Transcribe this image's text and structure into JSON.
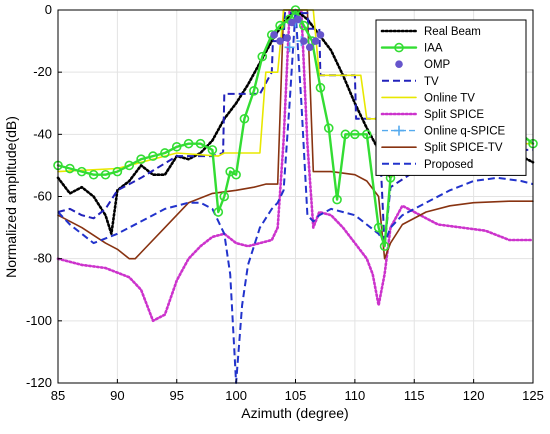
{
  "chart_data": {
    "type": "line",
    "xlabel": "Azimuth (degree)",
    "ylabel": "Normalized amplitude(dB)",
    "xlim": [
      85,
      125
    ],
    "ylim": [
      -120,
      0
    ],
    "xticks": [
      "85",
      "90",
      "95",
      "100",
      "105",
      "110",
      "115",
      "120",
      "125"
    ],
    "yticks": [
      "0",
      "-20",
      "-40",
      "-60",
      "-80",
      "-100",
      "-120"
    ],
    "grid": true,
    "legend_position": "top-right",
    "series": [
      {
        "name": "Real Beam",
        "color": "#000000",
        "style": "dotted",
        "x": [
          85,
          86,
          87,
          88,
          89,
          89.5,
          90,
          91,
          92,
          93,
          94,
          95,
          96,
          97,
          98,
          99,
          100,
          101,
          102,
          103,
          104,
          105,
          106,
          107,
          108,
          109,
          110,
          111,
          112,
          113,
          114,
          115,
          116,
          117,
          118,
          119,
          120,
          121,
          122,
          123,
          124,
          125
        ],
        "y": [
          -54,
          -59,
          -57,
          -60,
          -66,
          -72,
          -58,
          -55,
          -50,
          -53,
          -53,
          -47,
          -48,
          -46,
          -42,
          -35,
          -30,
          -24,
          -17,
          -10,
          -4,
          0,
          -3,
          -8,
          -13,
          -21,
          -30,
          -38,
          -45,
          -54,
          -48,
          -45,
          -44,
          -42,
          -42,
          -43,
          -44,
          -44,
          -45,
          -45,
          -47,
          -49
        ]
      },
      {
        "name": "IAA",
        "color": "#33dd33",
        "style": "solid-circle",
        "x": [
          85,
          86,
          87,
          88,
          89,
          90,
          91,
          92,
          93,
          94,
          95,
          96,
          97,
          98,
          98.5,
          99,
          99.5,
          100,
          100.7,
          101.5,
          102.2,
          103,
          103.7,
          104.5,
          105,
          105.7,
          106.4,
          107.1,
          107.8,
          108.5,
          109.2,
          110,
          111,
          112,
          112.5,
          113,
          114,
          115,
          116,
          117,
          118,
          119,
          120,
          121,
          122,
          123,
          124,
          125
        ],
        "y": [
          -50,
          -51,
          -52,
          -53,
          -53,
          -52,
          -50,
          -48,
          -47,
          -46,
          -44,
          -43,
          -43,
          -45,
          -65,
          -60,
          -52,
          -53,
          -35,
          -26,
          -15,
          -8,
          -5,
          -3,
          0,
          -5,
          -10,
          -25,
          -38,
          -61,
          -40,
          -40,
          -40,
          -70,
          -76,
          -54,
          -46,
          -45,
          -44,
          -43,
          -42,
          -41,
          -40,
          -40,
          -41,
          -41,
          -40,
          -43
        ]
      },
      {
        "name": "OMP",
        "color": "#6655cc",
        "style": "marker",
        "x": [
          103.2,
          103.7,
          104.3,
          104.7,
          105.2,
          105.7,
          106.2,
          106.7,
          107.1
        ],
        "y": [
          -8,
          -10,
          -9,
          -4,
          -3,
          -10,
          -12,
          -10,
          -8
        ]
      },
      {
        "name": "TV",
        "color": "#2222bb",
        "style": "dashed",
        "x": [
          85,
          86,
          87,
          88,
          89,
          90,
          91,
          92,
          95,
          98,
          98.9,
          99,
          102,
          103,
          103.1,
          104,
          104.1,
          106,
          106.1,
          107,
          107.1,
          110,
          110.1,
          112,
          112.5,
          113,
          115,
          120,
          125
        ],
        "y": [
          -65,
          -64,
          -66,
          -67,
          -64,
          -58,
          -56,
          -54,
          -47,
          -47,
          -46,
          -27,
          -27,
          -20,
          -10,
          -10,
          -1,
          -1,
          -6,
          -6,
          -21,
          -21,
          -35,
          -35,
          -76,
          -57,
          -52,
          -45,
          -45
        ]
      },
      {
        "name": "Online TV",
        "color": "#e8e800",
        "style": "solid",
        "x": [
          85,
          90,
          95,
          98.5,
          99,
          102,
          102.5,
          103.5,
          104,
          106.5,
          107,
          110.5,
          111,
          112.5,
          113,
          115,
          120,
          125
        ],
        "y": [
          -52,
          -51,
          -46,
          -47,
          -46,
          -46,
          -20,
          -20,
          0,
          0,
          -21,
          -21,
          -35,
          -35,
          -54,
          -46,
          -43,
          -43
        ]
      },
      {
        "name": "Split SPICE",
        "color": "#cc33cc",
        "style": "dotted",
        "x": [
          85,
          87,
          89,
          91,
          92,
          93,
          94,
          95,
          96,
          97,
          98,
          99,
          100,
          101,
          102,
          103,
          103.5,
          104,
          104.5,
          105.5,
          106,
          106.5,
          107,
          108,
          109,
          110,
          111,
          111.5,
          112,
          112.5,
          113,
          114,
          115,
          117,
          119,
          121,
          123,
          125
        ],
        "y": [
          -80,
          -82,
          -83,
          -86,
          -90,
          -100,
          -98,
          -87,
          -80,
          -76,
          -73,
          -72,
          -75,
          -76,
          -75,
          -74,
          -70,
          -42,
          -0.5,
          -0.5,
          -43,
          -70,
          -65,
          -66,
          -70,
          -75,
          -80,
          -85,
          -95,
          -85,
          -70,
          -63,
          -65,
          -69,
          -70,
          -71,
          -74,
          -74
        ]
      },
      {
        "name": "Online q-SPICE",
        "color": "#55aaee",
        "style": "marker-plus",
        "x": [
          104.5,
          105,
          105.5
        ],
        "y": [
          -12,
          -4,
          -10
        ]
      },
      {
        "name": "Split SPICE-TV",
        "color": "#883311",
        "style": "solid",
        "x": [
          85,
          87,
          89,
          90,
          91,
          91.5,
          92,
          94,
          96,
          98,
          100,
          101.5,
          102.5,
          103.5,
          104,
          106,
          106.5,
          107,
          108,
          110,
          111,
          112,
          112.5,
          113,
          114,
          116,
          118,
          120,
          123,
          125
        ],
        "y": [
          -66,
          -70,
          -75,
          -77,
          -80,
          -80,
          -78,
          -70,
          -62,
          -59,
          -58,
          -57,
          -56,
          -56,
          0,
          0,
          -52,
          -52,
          -52,
          -53,
          -55,
          -60,
          -80,
          -75,
          -69,
          -65,
          -63,
          -62,
          -61.5,
          -61.5
        ]
      },
      {
        "name": "Proposed",
        "color": "#2233cc",
        "style": "dashed",
        "x": [
          85,
          86,
          88,
          90,
          92,
          94,
          96,
          97,
          98,
          99,
          99.5,
          100,
          100.5,
          101,
          102,
          103,
          103.5,
          104,
          104.5,
          105,
          105.5,
          106,
          106.5,
          107,
          108,
          110,
          112,
          112.5,
          113,
          114,
          116,
          118,
          120,
          122,
          124,
          125
        ],
        "y": [
          -65,
          -69,
          -75,
          -72,
          -68,
          -64,
          -62,
          -62,
          -64,
          -72,
          -85,
          -120,
          -95,
          -82,
          -70,
          -64,
          -62,
          -58,
          -30,
          0,
          -30,
          -66,
          -68,
          -66,
          -64,
          -66,
          -72,
          -75,
          -70,
          -66,
          -62,
          -58,
          -55,
          -54,
          -55,
          -56
        ]
      }
    ]
  }
}
